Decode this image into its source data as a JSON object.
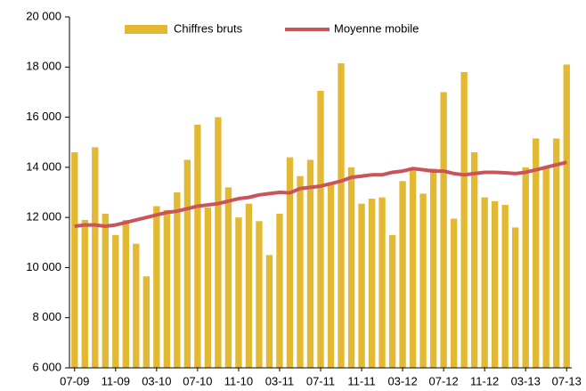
{
  "chart_data": {
    "type": "bar",
    "categories": [
      "07-09",
      null,
      null,
      null,
      "11-09",
      null,
      null,
      null,
      "03-10",
      null,
      null,
      null,
      "07-10",
      null,
      null,
      null,
      "11-10",
      null,
      null,
      null,
      "03-11",
      null,
      null,
      null,
      "07-11",
      null,
      null,
      null,
      "11-11",
      null,
      null,
      null,
      "03-12",
      null,
      null,
      null,
      "07-12",
      null,
      null,
      null,
      "11-12",
      null,
      null,
      null,
      "03-13",
      null,
      null,
      null,
      "07-13"
    ],
    "series": [
      {
        "name": "Chiffres bruts",
        "type": "bar",
        "color": "#e3b934",
        "values": [
          14600,
          11900,
          14800,
          12150,
          11300,
          11900,
          10950,
          9650,
          12450,
          12300,
          13000,
          14300,
          15700,
          12400,
          16000,
          13200,
          12000,
          12550,
          11850,
          10500,
          12150,
          14400,
          13650,
          14300,
          17050,
          13400,
          18150,
          14000,
          12550,
          12750,
          12800,
          11300,
          13450,
          13950,
          12950,
          13950,
          17000,
          11950,
          17800,
          14600,
          12800,
          12650,
          12500,
          11600,
          14000,
          15150,
          14000,
          15150,
          18100
        ]
      },
      {
        "name": "Moyenne mobile",
        "type": "line",
        "color": "#c9545a",
        "values": [
          11650,
          11700,
          11700,
          11650,
          11700,
          11800,
          11900,
          12000,
          12100,
          12200,
          12250,
          12350,
          12450,
          12500,
          12550,
          12650,
          12750,
          12800,
          12900,
          12950,
          13000,
          12980,
          13150,
          13200,
          13250,
          13350,
          13450,
          13600,
          13650,
          13700,
          13700,
          13800,
          13850,
          13950,
          13900,
          13850,
          13850,
          13750,
          13700,
          13750,
          13800,
          13800,
          13780,
          13750,
          13800,
          13900,
          14000,
          14100,
          14200
        ]
      }
    ],
    "ylim": [
      6000,
      20000
    ],
    "yticks": [
      {
        "value": 6000,
        "label": "6 000"
      },
      {
        "value": 8000,
        "label": "8 000"
      },
      {
        "value": 10000,
        "label": "10 000"
      },
      {
        "value": 12000,
        "label": "12 000"
      },
      {
        "value": 14000,
        "label": "14 000"
      },
      {
        "value": 16000,
        "label": "16 000"
      },
      {
        "value": 18000,
        "label": "18 000"
      },
      {
        "value": 20000,
        "label": "20 000"
      }
    ],
    "legend": "top"
  }
}
